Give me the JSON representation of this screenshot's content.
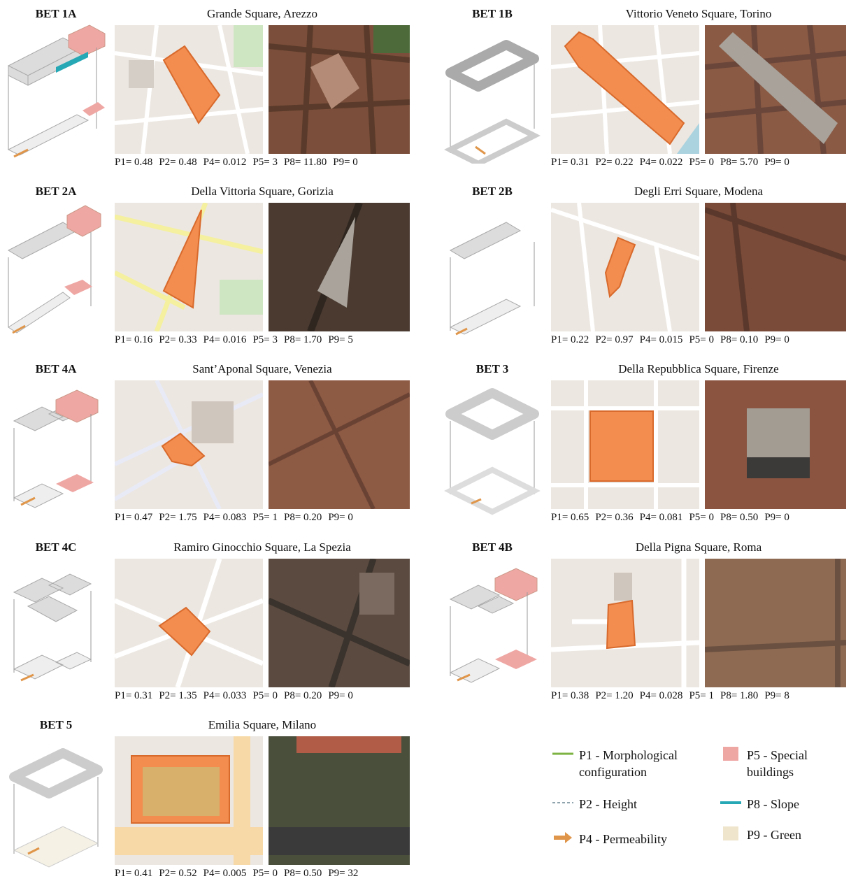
{
  "panels": [
    {
      "code": "BET 1A",
      "title": "Grande Square, Arezzo",
      "params": [
        "P1= 0.48",
        "P2= 0.48",
        "P4= 0.012",
        "P5= 3",
        "P8= 11.80",
        "P9= 0"
      ]
    },
    {
      "code": "BET 1B",
      "title": "Vittorio Veneto Square, Torino",
      "params": [
        "P1= 0.31",
        "P2= 0.22",
        "P4= 0.022",
        "P5= 0",
        "P8= 5.70",
        "P9= 0"
      ]
    },
    {
      "code": "BET 2A",
      "title": "Della Vittoria Square, Gorizia",
      "params": [
        "P1= 0.16",
        "P2= 0.33",
        "P4= 0.016",
        "P5= 3",
        "P8= 1.70",
        "P9= 5"
      ]
    },
    {
      "code": "BET 2B",
      "title": "Degli Erri Square, Modena",
      "params": [
        "P1= 0.22",
        "P2= 0.97",
        "P4= 0.015",
        "P5= 0",
        "P8= 0.10",
        "P9= 0"
      ]
    },
    {
      "code": "BET 4A",
      "title": "Sant’Aponal Square, Venezia",
      "params": [
        "P1= 0.47",
        "P2= 1.75",
        "P4= 0.083",
        "P5= 1",
        "P8= 0.20",
        "P9= 0"
      ]
    },
    {
      "code": "BET 3",
      "title": "Della Repubblica Square, Firenze",
      "params": [
        "P1= 0.65",
        "P2= 0.36",
        "P4= 0.081",
        "P5= 0",
        "P8= 0.50",
        "P9= 0"
      ]
    },
    {
      "code": "BET 4C",
      "title": "Ramiro Ginocchio Square, La Spezia",
      "params": [
        "P1= 0.31",
        "P2= 1.35",
        "P4= 0.033",
        "P5= 0",
        "P8= 0.20",
        "P9= 0"
      ]
    },
    {
      "code": "BET 4B",
      "title": "Della Pigna Square, Roma",
      "params": [
        "P1= 0.38",
        "P2= 1.20",
        "P4= 0.028",
        "P5= 1",
        "P8= 1.80",
        "P9= 8"
      ]
    },
    {
      "code": "BET 5",
      "title": "Emilia Square, Milano",
      "params": [
        "P1= 0.41",
        "P2= 0.52",
        "P4= 0.005",
        "P5= 0",
        "P8= 0.50",
        "P9= 32"
      ]
    }
  ],
  "legend": [
    {
      "label": "P1 - Morphological configuration",
      "color": "#7cb342"
    },
    {
      "label": "P2 - Height",
      "color": "#90a4ae"
    },
    {
      "label": "P4 - Permeability",
      "color": "#e0964a"
    },
    {
      "label": "P5 - Special buildings",
      "color": "#efa7a4"
    },
    {
      "label": "P8 - Slope",
      "color": "#26a8b5"
    },
    {
      "label": "P9 - Green",
      "color": "#efe4cc"
    }
  ],
  "colors": {
    "square": "#f28c4f",
    "special": "#efa7a4",
    "building": "#d9d9d9",
    "map_bg": "#ece7e1",
    "road": "#ffffff"
  }
}
